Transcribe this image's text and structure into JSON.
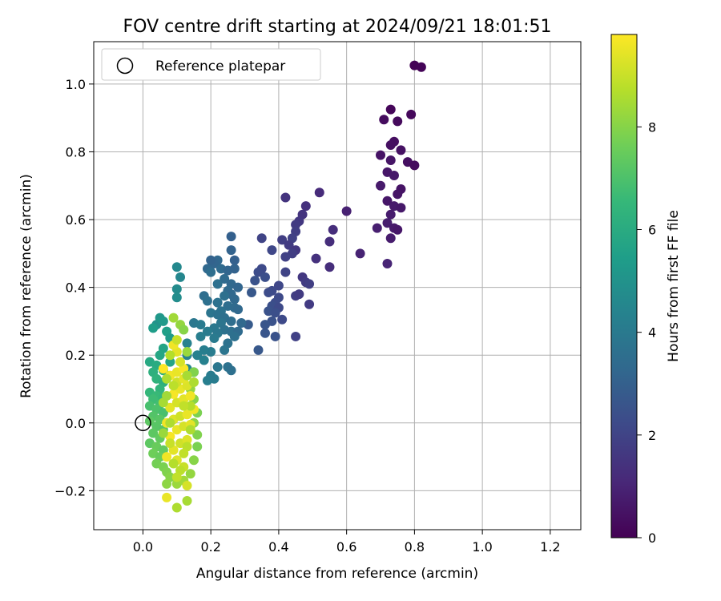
{
  "chart_data": {
    "type": "scatter",
    "title": "FOV centre drift starting at 2024/09/21 18:01:51",
    "xlabel": "Angular distance from reference (arcmin)",
    "ylabel": "Rotation from reference (arcmin)",
    "xlim": [
      -0.145,
      1.29
    ],
    "ylim": [
      -0.315,
      1.125
    ],
    "xticks": [
      "0.0",
      "0.2",
      "0.4",
      "0.6",
      "0.8",
      "1.0",
      "1.2"
    ],
    "yticks": [
      "−0.2",
      "0.0",
      "0.2",
      "0.4",
      "0.6",
      "0.8",
      "1.0"
    ],
    "grid": true,
    "legend": {
      "label": "Reference platepar",
      "placement": "top-left"
    },
    "reference_point": {
      "x": 0.0,
      "y": 0.0
    },
    "colorbar": {
      "label": "Hours from first FF file",
      "range": [
        0,
        9.8
      ],
      "ticks": [
        "0",
        "2",
        "4",
        "6",
        "8"
      ],
      "colormap": [
        "#440154",
        "#482878",
        "#3e4989",
        "#31688e",
        "#26828e",
        "#1f9e89",
        "#35b779",
        "#6ece58",
        "#b5de2b",
        "#fde725"
      ]
    },
    "points": [
      [
        0.8,
        1.055,
        0.05
      ],
      [
        0.82,
        1.05,
        0.08
      ],
      [
        0.73,
        0.925,
        0.15
      ],
      [
        0.79,
        0.91,
        0.2
      ],
      [
        0.71,
        0.895,
        0.3
      ],
      [
        0.75,
        0.89,
        0.25
      ],
      [
        0.74,
        0.83,
        0.35
      ],
      [
        0.73,
        0.82,
        0.4
      ],
      [
        0.76,
        0.805,
        0.45
      ],
      [
        0.7,
        0.79,
        0.5
      ],
      [
        0.73,
        0.775,
        0.55
      ],
      [
        0.78,
        0.77,
        0.4
      ],
      [
        0.8,
        0.76,
        0.3
      ],
      [
        0.72,
        0.74,
        0.6
      ],
      [
        0.74,
        0.73,
        0.65
      ],
      [
        0.7,
        0.7,
        0.7
      ],
      [
        0.76,
        0.69,
        0.5
      ],
      [
        0.75,
        0.675,
        0.55
      ],
      [
        0.72,
        0.655,
        0.6
      ],
      [
        0.74,
        0.64,
        0.7
      ],
      [
        0.76,
        0.635,
        0.65
      ],
      [
        0.73,
        0.615,
        0.75
      ],
      [
        0.72,
        0.59,
        0.8
      ],
      [
        0.74,
        0.575,
        0.7
      ],
      [
        0.69,
        0.575,
        0.85
      ],
      [
        0.75,
        0.57,
        0.6
      ],
      [
        0.73,
        0.545,
        0.75
      ],
      [
        0.6,
        0.625,
        0.9
      ],
      [
        0.64,
        0.5,
        0.95
      ],
      [
        0.72,
        0.47,
        1.0
      ],
      [
        0.52,
        0.68,
        1.2
      ],
      [
        0.42,
        0.665,
        1.5
      ],
      [
        0.48,
        0.64,
        1.4
      ],
      [
        0.47,
        0.615,
        1.5
      ],
      [
        0.46,
        0.595,
        1.6
      ],
      [
        0.45,
        0.585,
        1.7
      ],
      [
        0.56,
        0.57,
        1.3
      ],
      [
        0.45,
        0.565,
        1.8
      ],
      [
        0.44,
        0.545,
        1.9
      ],
      [
        0.41,
        0.54,
        1.8
      ],
      [
        0.35,
        0.545,
        2.0
      ],
      [
        0.55,
        0.535,
        1.3
      ],
      [
        0.43,
        0.525,
        1.7
      ],
      [
        0.45,
        0.51,
        1.6
      ],
      [
        0.38,
        0.51,
        2.1
      ],
      [
        0.44,
        0.5,
        1.8
      ],
      [
        0.42,
        0.49,
        1.9
      ],
      [
        0.51,
        0.485,
        1.4
      ],
      [
        0.55,
        0.46,
        1.3
      ],
      [
        0.35,
        0.455,
        2.2
      ],
      [
        0.34,
        0.445,
        2.3
      ],
      [
        0.36,
        0.43,
        2.4
      ],
      [
        0.33,
        0.42,
        2.5
      ],
      [
        0.42,
        0.445,
        2.0
      ],
      [
        0.47,
        0.43,
        1.6
      ],
      [
        0.48,
        0.415,
        1.7
      ],
      [
        0.49,
        0.41,
        1.8
      ],
      [
        0.4,
        0.405,
        2.1
      ],
      [
        0.38,
        0.39,
        2.2
      ],
      [
        0.37,
        0.385,
        2.3
      ],
      [
        0.45,
        0.375,
        1.8
      ],
      [
        0.46,
        0.38,
        1.7
      ],
      [
        0.4,
        0.37,
        2.2
      ],
      [
        0.39,
        0.355,
        2.3
      ],
      [
        0.38,
        0.345,
        2.4
      ],
      [
        0.4,
        0.34,
        2.2
      ],
      [
        0.49,
        0.35,
        1.7
      ],
      [
        0.37,
        0.33,
        2.5
      ],
      [
        0.39,
        0.325,
        2.4
      ],
      [
        0.41,
        0.305,
        2.2
      ],
      [
        0.38,
        0.3,
        2.5
      ],
      [
        0.36,
        0.29,
        2.6
      ],
      [
        0.32,
        0.385,
        2.7
      ],
      [
        0.31,
        0.29,
        2.8
      ],
      [
        0.36,
        0.265,
        2.6
      ],
      [
        0.39,
        0.255,
        2.5
      ],
      [
        0.45,
        0.255,
        1.9
      ],
      [
        0.34,
        0.215,
        2.7
      ],
      [
        0.26,
        0.55,
        3.0
      ],
      [
        0.26,
        0.51,
        3.1
      ],
      [
        0.27,
        0.48,
        3.0
      ],
      [
        0.22,
        0.48,
        3.3
      ],
      [
        0.21,
        0.47,
        3.2
      ],
      [
        0.2,
        0.48,
        3.1
      ],
      [
        0.19,
        0.455,
        3.3
      ],
      [
        0.23,
        0.455,
        3.4
      ],
      [
        0.25,
        0.45,
        3.2
      ],
      [
        0.27,
        0.455,
        3.1
      ],
      [
        0.2,
        0.445,
        3.5
      ],
      [
        0.24,
        0.425,
        3.4
      ],
      [
        0.26,
        0.41,
        3.3
      ],
      [
        0.22,
        0.41,
        3.6
      ],
      [
        0.28,
        0.4,
        3.2
      ],
      [
        0.25,
        0.39,
        3.4
      ],
      [
        0.26,
        0.38,
        3.3
      ],
      [
        0.18,
        0.375,
        3.5
      ],
      [
        0.24,
        0.375,
        3.6
      ],
      [
        0.27,
        0.365,
        3.3
      ],
      [
        0.19,
        0.36,
        3.6
      ],
      [
        0.22,
        0.355,
        3.7
      ],
      [
        0.25,
        0.345,
        3.5
      ],
      [
        0.27,
        0.34,
        3.4
      ],
      [
        0.28,
        0.335,
        3.3
      ],
      [
        0.23,
        0.33,
        3.7
      ],
      [
        0.2,
        0.325,
        3.8
      ],
      [
        0.22,
        0.32,
        3.7
      ],
      [
        0.24,
        0.31,
        3.6
      ],
      [
        0.26,
        0.3,
        3.5
      ],
      [
        0.29,
        0.295,
        3.3
      ],
      [
        0.23,
        0.295,
        3.8
      ],
      [
        0.15,
        0.295,
        3.9
      ],
      [
        0.17,
        0.29,
        4.0
      ],
      [
        0.21,
        0.28,
        3.9
      ],
      [
        0.24,
        0.275,
        3.7
      ],
      [
        0.26,
        0.27,
        3.6
      ],
      [
        0.28,
        0.27,
        3.4
      ],
      [
        0.19,
        0.27,
        4.1
      ],
      [
        0.22,
        0.265,
        3.9
      ],
      [
        0.17,
        0.255,
        4.2
      ],
      [
        0.21,
        0.25,
        4.0
      ],
      [
        0.27,
        0.255,
        3.6
      ],
      [
        0.25,
        0.235,
        3.7
      ],
      [
        0.24,
        0.215,
        3.8
      ],
      [
        0.2,
        0.21,
        4.1
      ],
      [
        0.18,
        0.215,
        4.2
      ],
      [
        0.16,
        0.2,
        4.3
      ],
      [
        0.13,
        0.235,
        4.3
      ],
      [
        0.18,
        0.185,
        4.3
      ],
      [
        0.13,
        0.2,
        4.4
      ],
      [
        0.25,
        0.165,
        3.7
      ],
      [
        0.22,
        0.165,
        3.9
      ],
      [
        0.2,
        0.14,
        4.1
      ],
      [
        0.19,
        0.125,
        4.2
      ],
      [
        0.21,
        0.13,
        4.1
      ],
      [
        0.26,
        0.155,
        3.6
      ],
      [
        0.13,
        0.16,
        4.5
      ],
      [
        0.15,
        0.15,
        4.4
      ],
      [
        0.1,
        0.46,
        4.6
      ],
      [
        0.11,
        0.43,
        4.5
      ],
      [
        0.1,
        0.395,
        4.7
      ],
      [
        0.1,
        0.37,
        4.8
      ],
      [
        0.04,
        0.29,
        5.0
      ],
      [
        0.05,
        0.31,
        5.2
      ],
      [
        0.06,
        0.3,
        5.3
      ],
      [
        0.03,
        0.28,
        5.4
      ],
      [
        0.07,
        0.27,
        5.5
      ],
      [
        0.08,
        0.25,
        5.3
      ],
      [
        0.09,
        0.23,
        5.6
      ],
      [
        0.06,
        0.22,
        5.7
      ],
      [
        0.05,
        0.2,
        5.8
      ],
      [
        0.02,
        0.18,
        5.9
      ],
      [
        0.04,
        0.17,
        6.0
      ],
      [
        0.06,
        0.155,
        6.1
      ],
      [
        0.08,
        0.18,
        5.7
      ],
      [
        0.03,
        0.15,
        6.2
      ],
      [
        0.04,
        0.13,
        6.3
      ],
      [
        0.06,
        0.12,
        6.2
      ],
      [
        0.05,
        0.1,
        6.4
      ],
      [
        0.02,
        0.09,
        6.5
      ],
      [
        0.04,
        0.08,
        6.6
      ],
      [
        0.06,
        0.075,
        6.5
      ],
      [
        0.03,
        0.07,
        6.7
      ],
      [
        0.05,
        0.055,
        6.8
      ],
      [
        0.02,
        0.05,
        6.9
      ],
      [
        0.04,
        0.04,
        7.0
      ],
      [
        0.06,
        0.03,
        6.9
      ],
      [
        0.03,
        0.02,
        7.1
      ],
      [
        0.05,
        0.01,
        7.2
      ],
      [
        0.02,
        0.005,
        7.3
      ],
      [
        0.04,
        -0.01,
        7.2
      ],
      [
        0.06,
        -0.02,
        7.1
      ],
      [
        0.03,
        -0.03,
        7.3
      ],
      [
        0.05,
        -0.045,
        7.4
      ],
      [
        0.02,
        -0.06,
        7.3
      ],
      [
        0.04,
        -0.07,
        7.5
      ],
      [
        0.06,
        -0.08,
        7.4
      ],
      [
        0.03,
        -0.09,
        7.6
      ],
      [
        0.05,
        -0.1,
        7.5
      ],
      [
        0.04,
        -0.12,
        7.7
      ],
      [
        0.06,
        -0.13,
        7.8
      ],
      [
        0.07,
        -0.145,
        7.9
      ],
      [
        0.08,
        -0.16,
        8.0
      ],
      [
        0.07,
        -0.18,
        8.1
      ],
      [
        0.1,
        -0.18,
        8.3
      ],
      [
        0.12,
        -0.17,
        8.4
      ],
      [
        0.14,
        -0.15,
        8.2
      ],
      [
        0.15,
        -0.11,
        8.0
      ],
      [
        0.16,
        -0.07,
        7.8
      ],
      [
        0.16,
        -0.035,
        7.9
      ],
      [
        0.15,
        0.0,
        8.1
      ],
      [
        0.16,
        0.03,
        7.8
      ],
      [
        0.15,
        0.07,
        8.0
      ],
      [
        0.14,
        0.1,
        8.2
      ],
      [
        0.15,
        0.15,
        7.9
      ],
      [
        0.13,
        0.21,
        8.3
      ],
      [
        0.09,
        0.31,
        8.4
      ],
      [
        0.11,
        0.29,
        8.2
      ],
      [
        0.12,
        0.275,
        8.0
      ],
      [
        0.13,
        -0.23,
        8.5
      ],
      [
        0.1,
        -0.25,
        8.6
      ],
      [
        0.07,
        -0.22,
        9.5
      ],
      [
        0.13,
        -0.185,
        9.2
      ],
      [
        0.12,
        -0.13,
        9.0
      ],
      [
        0.1,
        -0.11,
        9.3
      ],
      [
        0.07,
        -0.1,
        9.6
      ],
      [
        0.09,
        -0.08,
        9.4
      ],
      [
        0.11,
        -0.06,
        9.1
      ],
      [
        0.13,
        -0.05,
        9.3
      ],
      [
        0.08,
        -0.04,
        9.7
      ],
      [
        0.1,
        -0.02,
        9.5
      ],
      [
        0.12,
        -0.01,
        9.2
      ],
      [
        0.14,
        -0.005,
        9.4
      ],
      [
        0.07,
        0.0,
        9.6
      ],
      [
        0.09,
        0.01,
        9.3
      ],
      [
        0.11,
        0.02,
        9.1
      ],
      [
        0.13,
        0.025,
        9.5
      ],
      [
        0.15,
        0.04,
        9.6
      ],
      [
        0.08,
        0.045,
        9.4
      ],
      [
        0.1,
        0.06,
        9.2
      ],
      [
        0.12,
        0.07,
        9.4
      ],
      [
        0.14,
        0.08,
        9.6
      ],
      [
        0.09,
        0.085,
        9.7
      ],
      [
        0.11,
        0.1,
        9.5
      ],
      [
        0.13,
        0.11,
        9.3
      ],
      [
        0.1,
        0.12,
        9.1
      ],
      [
        0.12,
        0.13,
        9.4
      ],
      [
        0.08,
        0.14,
        9.6
      ],
      [
        0.1,
        0.15,
        9.5
      ],
      [
        0.12,
        0.16,
        9.7
      ],
      [
        0.06,
        0.16,
        9.8
      ],
      [
        0.11,
        0.18,
        9.2
      ],
      [
        0.1,
        0.21,
        9.4
      ],
      [
        0.09,
        0.23,
        9.6
      ],
      [
        0.1,
        0.245,
        9.0
      ],
      [
        0.14,
        -0.02,
        8.6
      ],
      [
        0.13,
        -0.07,
        8.8
      ],
      [
        0.12,
        -0.09,
        8.9
      ],
      [
        0.08,
        -0.06,
        9.0
      ],
      [
        0.09,
        -0.12,
        8.7
      ],
      [
        0.11,
        -0.14,
        8.8
      ],
      [
        0.14,
        0.05,
        8.7
      ],
      [
        0.12,
        0.05,
        8.9
      ],
      [
        0.09,
        0.11,
        8.8
      ],
      [
        0.07,
        0.13,
        8.6
      ],
      [
        0.13,
        0.14,
        8.5
      ],
      [
        0.08,
        0.2,
        8.7
      ],
      [
        0.06,
        0.06,
        8.5
      ],
      [
        0.07,
        0.08,
        8.4
      ],
      [
        0.08,
        0.0,
        8.6
      ],
      [
        0.06,
        -0.03,
        8.3
      ],
      [
        0.1,
        -0.16,
        8.9
      ],
      [
        0.15,
        0.12,
        8.6
      ]
    ]
  }
}
